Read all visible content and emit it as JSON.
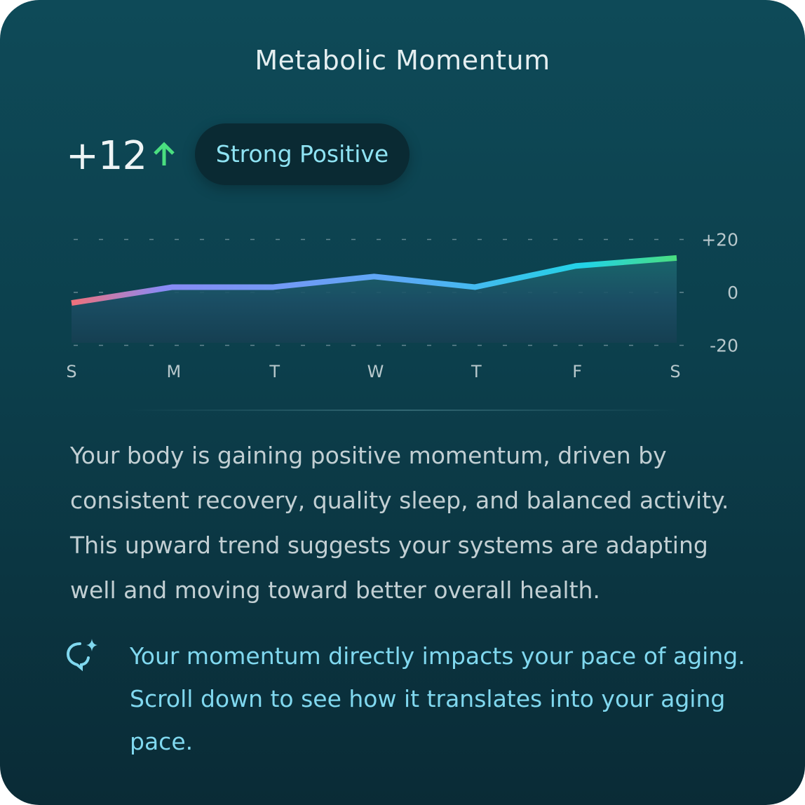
{
  "title": "Metabolic Momentum",
  "score": "+12",
  "trend_icon": "arrow-up-icon",
  "badge": "Strong Positive",
  "colors": {
    "accent": "#8fe3f3",
    "up": "#4ade80",
    "line_start": "#f0707a",
    "line_mid": "#6fa0f5",
    "line_end": "#4ade80"
  },
  "chart_data": {
    "type": "area",
    "categories": [
      "S",
      "M",
      "T",
      "W",
      "T",
      "F",
      "S"
    ],
    "values": [
      -4,
      2,
      2,
      6,
      2,
      10,
      13
    ],
    "y_ticks": [
      "+20",
      "0",
      "-20"
    ],
    "ylim": [
      -20,
      20
    ],
    "grid": true
  },
  "description": "Your body is gaining positive momentum, driven by consistent recovery, quality sleep, and balanced activity. This upward trend suggests your systems are adapting well and moving toward better overall health.",
  "note": {
    "icon": "sparkle-chat-icon",
    "text": "Your momentum directly impacts your pace of aging. Scroll down to see how it translates into your aging pace."
  }
}
